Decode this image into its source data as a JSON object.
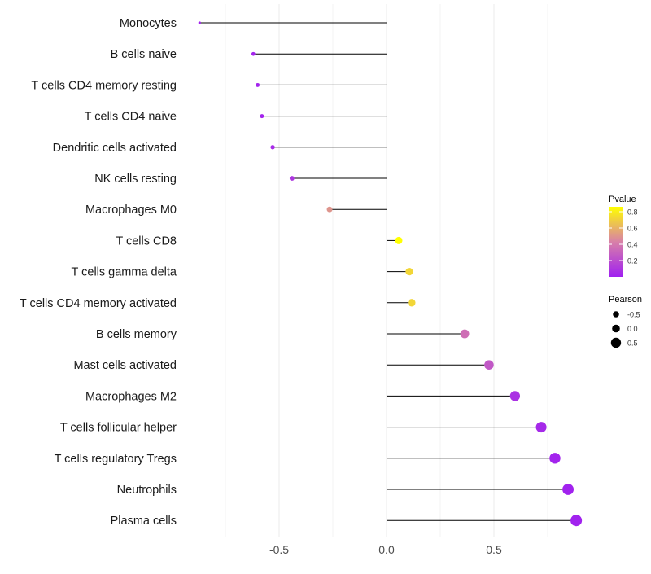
{
  "chart_data": {
    "type": "lollipop",
    "title": "",
    "xlabel": "",
    "ylabel": "",
    "xlim": [
      -0.95,
      0.95
    ],
    "xticks": [
      -0.5,
      0.0,
      0.5
    ],
    "xtick_labels": [
      "-0.5",
      "0.0",
      "0.5"
    ],
    "grid": true,
    "categories": [
      "Monocytes",
      "B cells naive",
      "T cells CD4 memory resting",
      "T cells CD4 naive",
      "Dendritic cells activated",
      "NK cells resting",
      "Macrophages M0",
      "T cells CD8",
      "T cells gamma delta",
      "T cells CD4 memory activated",
      "B cells memory",
      "Mast cells activated",
      "Macrophages M2",
      "T cells follicular helper",
      "T cells regulatory  Tregs",
      "Neutrophils",
      "Plasma cells"
    ],
    "pearson": [
      -0.87,
      -0.62,
      -0.6,
      -0.58,
      -0.53,
      -0.44,
      -0.265,
      0.057,
      0.106,
      0.117,
      0.364,
      0.477,
      0.598,
      0.72,
      0.784,
      0.845,
      0.883
    ],
    "pvalue": [
      0.01,
      0.02,
      0.02,
      0.02,
      0.05,
      0.1,
      0.5,
      0.86,
      0.72,
      0.72,
      0.35,
      0.25,
      0.08,
      0.04,
      0.02,
      0.01,
      0.01
    ],
    "legend": {
      "placement": "right",
      "color_title": "Pvalue",
      "color_range": [
        0.0,
        0.86
      ],
      "color_ticks": [
        "0.2",
        "0.4",
        "0.6",
        "0.8"
      ],
      "color_low": "#A020F0",
      "color_high": "#FFFF00",
      "size_title": "Pearson",
      "size_ticks": [
        "-0.5",
        "0.0",
        "0.5"
      ]
    }
  }
}
